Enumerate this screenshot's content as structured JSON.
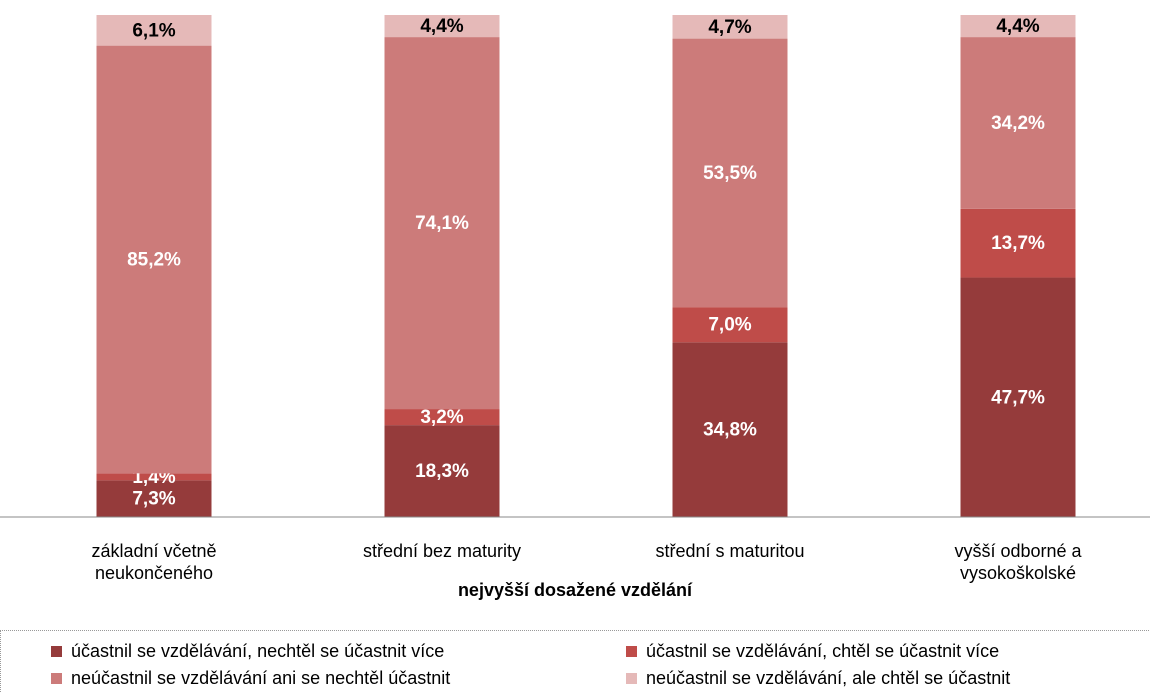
{
  "chart_data": {
    "type": "stacked_bar",
    "categories": [
      "základní včetně\nneukončeného",
      "střední bez maturity",
      "střední s maturitou",
      "vyšší odborné a\nvysokoškolské"
    ],
    "x_label": "nejvyšší dosažené vzdělání",
    "ylim": [
      0,
      100
    ],
    "series": [
      {
        "name": "účastnil se vzdělávání, nechtěl se účastnit více",
        "color": "#953b3b",
        "label_color": "#ffffff",
        "values": [
          7.3,
          18.3,
          34.8,
          47.7
        ],
        "value_labels": [
          "7,3%",
          "18,3%",
          "34,8%",
          "47,7%"
        ]
      },
      {
        "name": "účastnil se vzdělávání, chtěl se účastnit více",
        "color": "#bf4c49",
        "label_color": "#ffffff",
        "values": [
          1.4,
          3.2,
          7.0,
          13.7
        ],
        "value_labels": [
          "1,4%",
          "3,2%",
          "7,0%",
          "13,7%"
        ]
      },
      {
        "name": "neúčastnil se vzdělávání ani se nechtěl účastnit",
        "color": "#cc7b7a",
        "label_color": "#ffffff",
        "values": [
          85.2,
          74.1,
          53.5,
          34.2
        ],
        "value_labels": [
          "85,2%",
          "74,1%",
          "53,5%",
          "34,2%"
        ]
      },
      {
        "name": "neúčastnil se vzdělávání, ale chtěl se účastnit",
        "color": "#e5b9b8",
        "label_color": "#000000",
        "values": [
          6.1,
          4.4,
          4.7,
          4.4
        ],
        "value_labels": [
          "6,1%",
          "4,4%",
          "4,7%",
          "4,4%"
        ]
      }
    ]
  }
}
